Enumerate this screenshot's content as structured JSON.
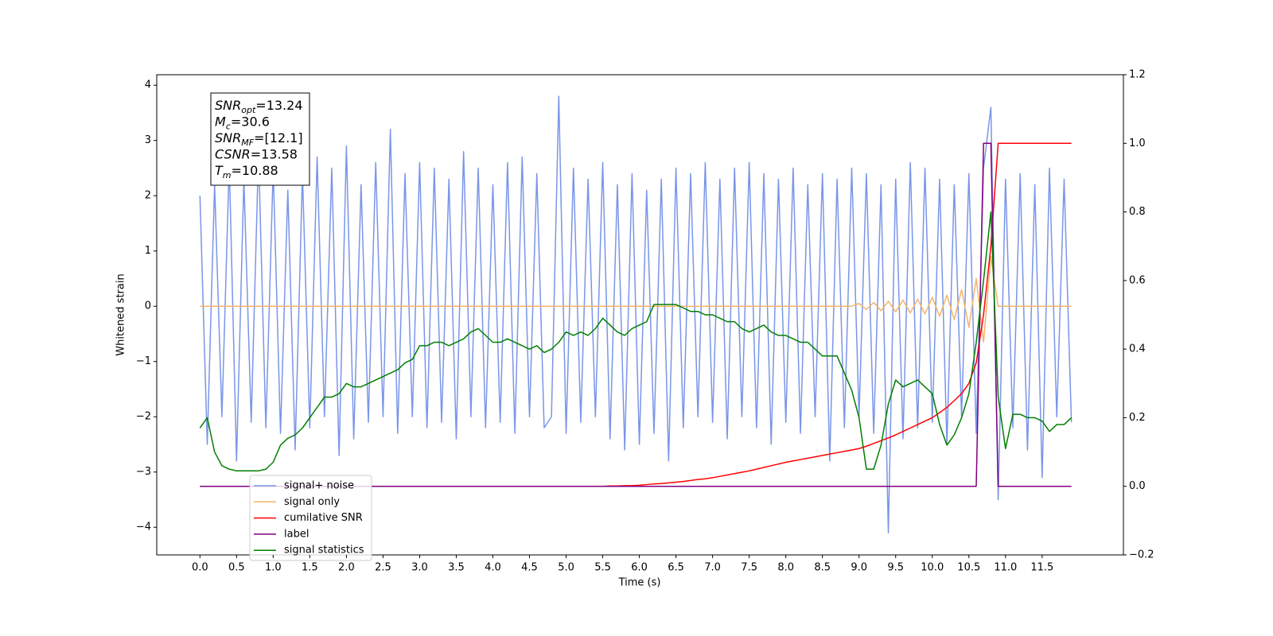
{
  "chart_data": {
    "type": "line",
    "x_label": "Time (s)",
    "y_label": "Whitened strain",
    "xlim": [
      -0.59,
      12.61
    ],
    "ylim": [
      -4.5,
      4.19
    ],
    "y2lim": [
      -0.2,
      1.2
    ],
    "xticks": [
      {
        "value": 0,
        "label": "0.0"
      },
      0.5,
      {
        "value": 1,
        "label": "1.0"
      },
      1.5,
      {
        "value": 2,
        "label": "2.0"
      },
      2.5,
      {
        "value": 3,
        "label": "3.0"
      },
      3.5,
      {
        "value": 4,
        "label": "4.0"
      },
      4.5,
      {
        "value": 5,
        "label": "5.0"
      },
      5.5,
      {
        "value": 6,
        "label": "6.0"
      },
      6.5,
      {
        "value": 7,
        "label": "7.0"
      },
      7.5,
      {
        "value": 8,
        "label": "8.0"
      },
      8.5,
      {
        "value": 9,
        "label": "9.0"
      },
      9.5,
      {
        "value": 10,
        "label": "10.0"
      },
      10.5,
      {
        "value": 11,
        "label": "11.0"
      },
      11.5
    ],
    "yticks": [
      {
        "value": -4,
        "label": "−4"
      },
      {
        "value": -3,
        "label": "−3"
      },
      {
        "value": -2,
        "label": "−2"
      },
      {
        "value": -1,
        "label": "−1"
      },
      0,
      1,
      2,
      3,
      4
    ],
    "y2ticks": [
      {
        "value": -0.2,
        "label": "−0.2"
      },
      {
        "value": 0,
        "label": "0.0"
      },
      0.2,
      0.4,
      0.6,
      0.8,
      {
        "value": 1,
        "label": "1.0"
      },
      1.2
    ],
    "grid": false,
    "legend_loc": "lower left",
    "annotation": [
      {
        "symbol": "SNR",
        "sub": "opt",
        "text": "=13.24"
      },
      {
        "symbol": "M",
        "sub": "c",
        "text": "=30.6"
      },
      {
        "symbol": "SNR",
        "sub": "MF",
        "text": "=[12.1]"
      },
      {
        "symbol": "CSNR",
        "sub": "",
        "text": "=13.58"
      },
      {
        "symbol": "T",
        "sub": "m",
        "text": "=10.88"
      }
    ],
    "x": [
      0.0,
      0.1,
      0.2,
      0.3,
      0.4,
      0.5,
      0.6,
      0.7,
      0.8,
      0.9,
      1.0,
      1.1,
      1.2,
      1.3,
      1.4,
      1.5,
      1.6,
      1.7,
      1.8,
      1.9,
      2.0,
      2.1,
      2.2,
      2.3,
      2.4,
      2.5,
      2.6,
      2.7,
      2.8,
      2.9,
      3.0,
      3.1,
      3.2,
      3.3,
      3.4,
      3.5,
      3.6,
      3.7,
      3.8,
      3.9,
      4.0,
      4.1,
      4.2,
      4.3,
      4.4,
      4.5,
      4.6,
      4.7,
      4.8,
      4.9,
      5.0,
      5.1,
      5.2,
      5.3,
      5.4,
      5.5,
      5.6,
      5.7,
      5.8,
      5.9,
      6.0,
      6.1,
      6.2,
      6.3,
      6.4,
      6.5,
      6.6,
      6.7,
      6.8,
      6.9,
      7.0,
      7.1,
      7.2,
      7.3,
      7.4,
      7.5,
      7.6,
      7.7,
      7.8,
      7.9,
      8.0,
      8.1,
      8.2,
      8.3,
      8.4,
      8.5,
      8.6,
      8.7,
      8.8,
      8.9,
      9.0,
      9.1,
      9.2,
      9.3,
      9.4,
      9.5,
      9.6,
      9.7,
      9.8,
      9.9,
      10.0,
      10.1,
      10.2,
      10.3,
      10.4,
      10.5,
      10.6,
      10.7,
      10.8,
      10.9,
      11.0,
      11.1,
      11.2,
      11.3,
      11.4,
      11.5,
      11.6,
      11.7,
      11.8,
      11.9
    ],
    "series": [
      {
        "name": "signal+ noise",
        "color": "#7a95e8",
        "axis": "y",
        "values": [
          2.0,
          -2.5,
          2.2,
          -2.0,
          2.6,
          -2.8,
          2.3,
          -2.1,
          2.8,
          -2.2,
          2.5,
          -2.3,
          2.1,
          -2.6,
          2.4,
          -2.2,
          2.7,
          -2.0,
          2.5,
          -2.7,
          2.9,
          -2.4,
          2.2,
          -2.1,
          2.6,
          -2.0,
          3.2,
          -2.3,
          2.4,
          -2.0,
          2.6,
          -2.2,
          2.5,
          -2.1,
          2.3,
          -2.4,
          2.8,
          -2.0,
          2.5,
          -2.2,
          2.2,
          -2.1,
          2.6,
          -2.3,
          2.7,
          -2.0,
          2.4,
          -2.2,
          -2.0,
          3.8,
          -2.3,
          2.5,
          -2.1,
          2.3,
          -2.0,
          2.6,
          -2.4,
          2.2,
          -2.6,
          2.4,
          -2.5,
          2.1,
          -2.3,
          2.3,
          -2.8,
          2.5,
          -2.2,
          2.4,
          -2.0,
          2.6,
          -2.1,
          2.3,
          -2.4,
          2.5,
          -2.0,
          2.6,
          -2.2,
          2.4,
          -2.5,
          2.3,
          -2.1,
          2.5,
          -2.3,
          2.2,
          -2.0,
          2.4,
          -2.8,
          2.3,
          -2.2,
          2.5,
          -2.0,
          2.4,
          -2.3,
          2.2,
          -4.1,
          2.3,
          -2.4,
          2.6,
          -2.2,
          2.5,
          -2.1,
          2.3,
          -2.5,
          2.2,
          -2.0,
          2.4,
          -2.3,
          2.5,
          3.6,
          -3.5,
          2.3,
          -2.2,
          2.4,
          -2.6,
          2.2,
          -3.1,
          2.5,
          -2.0,
          2.3,
          -2.1
        ]
      },
      {
        "name": "signal only",
        "color": "#f5b469",
        "axis": "y",
        "values": [
          0,
          0,
          0,
          0,
          0,
          0,
          0,
          0,
          0,
          0,
          0,
          0,
          0,
          0,
          0,
          0,
          0,
          0,
          0,
          0,
          0,
          0,
          0,
          0,
          0,
          0,
          0,
          0,
          0,
          0,
          0,
          0,
          0,
          0,
          0,
          0,
          0,
          0,
          0,
          0,
          0,
          0,
          0,
          0,
          0,
          0,
          0,
          0,
          0,
          0,
          0,
          0,
          0,
          0,
          0,
          0,
          0,
          0,
          0,
          0,
          0,
          0,
          0,
          0,
          0,
          0,
          0,
          0,
          0,
          0,
          0,
          0,
          0,
          0,
          0,
          0,
          0,
          0,
          0,
          0,
          0,
          0,
          0,
          0,
          0,
          0,
          0,
          0,
          0,
          0,
          0.05,
          -0.06,
          0.07,
          -0.08,
          0.09,
          -0.1,
          0.11,
          -0.12,
          0.13,
          -0.14,
          0.16,
          -0.18,
          0.2,
          -0.24,
          0.3,
          -0.38,
          0.5,
          -0.65,
          0.9,
          0,
          0,
          0,
          0,
          0,
          0,
          0,
          0,
          0,
          0,
          0
        ]
      },
      {
        "name": "cumilative SNR",
        "color": "#ff0000",
        "axis": "y2",
        "values": [
          0,
          0,
          0,
          0,
          0,
          0,
          0,
          0,
          0,
          0,
          0,
          0,
          0,
          0,
          0,
          0,
          0,
          0,
          0,
          0,
          0,
          0,
          0,
          0,
          0,
          0,
          0,
          0,
          0,
          0,
          0,
          0,
          0,
          0,
          0,
          0,
          0,
          0,
          0,
          0,
          0,
          0,
          0,
          0,
          0,
          0,
          0,
          0,
          0,
          0,
          0,
          0,
          0,
          0,
          0,
          0,
          0.001,
          0.001,
          0.002,
          0.002,
          0.003,
          0.005,
          0.007,
          0.008,
          0.01,
          0.012,
          0.014,
          0.017,
          0.02,
          0.022,
          0.025,
          0.029,
          0.033,
          0.037,
          0.041,
          0.045,
          0.05,
          0.055,
          0.06,
          0.065,
          0.07,
          0.074,
          0.078,
          0.082,
          0.086,
          0.09,
          0.094,
          0.098,
          0.102,
          0.106,
          0.11,
          0.117,
          0.125,
          0.133,
          0.141,
          0.15,
          0.16,
          0.17,
          0.18,
          0.19,
          0.2,
          0.215,
          0.23,
          0.25,
          0.27,
          0.3,
          0.36,
          0.5,
          0.7,
          1.0,
          1.0,
          1.0,
          1.0,
          1.0,
          1.0,
          1.0,
          1.0,
          1.0,
          1.0,
          1.0
        ]
      },
      {
        "name": "label",
        "color": "#800080",
        "axis": "y2",
        "values": [
          0,
          0,
          0,
          0,
          0,
          0,
          0,
          0,
          0,
          0,
          0,
          0,
          0,
          0,
          0,
          0,
          0,
          0,
          0,
          0,
          0,
          0,
          0,
          0,
          0,
          0,
          0,
          0,
          0,
          0,
          0,
          0,
          0,
          0,
          0,
          0,
          0,
          0,
          0,
          0,
          0,
          0,
          0,
          0,
          0,
          0,
          0,
          0,
          0,
          0,
          0,
          0,
          0,
          0,
          0,
          0,
          0,
          0,
          0,
          0,
          0,
          0,
          0,
          0,
          0,
          0,
          0,
          0,
          0,
          0,
          0,
          0,
          0,
          0,
          0,
          0,
          0,
          0,
          0,
          0,
          0,
          0,
          0,
          0,
          0,
          0,
          0,
          0,
          0,
          0,
          0,
          0,
          0,
          0,
          0,
          0,
          0,
          0,
          0,
          0,
          0,
          0,
          0,
          0,
          0,
          0,
          0,
          1,
          1,
          0,
          0,
          0,
          0,
          0,
          0,
          0,
          0,
          0,
          0,
          0
        ]
      },
      {
        "name": "signal statistics",
        "color": "#008000",
        "axis": "y2",
        "values": [
          0.17,
          0.2,
          0.1,
          0.06,
          0.05,
          0.045,
          0.045,
          0.045,
          0.045,
          0.05,
          0.07,
          0.12,
          0.14,
          0.15,
          0.17,
          0.2,
          0.23,
          0.26,
          0.26,
          0.27,
          0.3,
          0.29,
          0.29,
          0.3,
          0.31,
          0.32,
          0.33,
          0.34,
          0.36,
          0.37,
          0.41,
          0.41,
          0.42,
          0.42,
          0.41,
          0.42,
          0.43,
          0.45,
          0.46,
          0.44,
          0.42,
          0.42,
          0.43,
          0.42,
          0.41,
          0.4,
          0.41,
          0.39,
          0.4,
          0.42,
          0.45,
          0.44,
          0.45,
          0.44,
          0.46,
          0.49,
          0.47,
          0.45,
          0.44,
          0.46,
          0.47,
          0.48,
          0.53,
          0.53,
          0.53,
          0.53,
          0.52,
          0.51,
          0.51,
          0.5,
          0.5,
          0.49,
          0.48,
          0.48,
          0.46,
          0.45,
          0.46,
          0.47,
          0.45,
          0.44,
          0.44,
          0.43,
          0.42,
          0.42,
          0.4,
          0.38,
          0.38,
          0.38,
          0.33,
          0.28,
          0.2,
          0.05,
          0.05,
          0.12,
          0.24,
          0.31,
          0.29,
          0.3,
          0.31,
          0.29,
          0.27,
          0.18,
          0.12,
          0.15,
          0.2,
          0.27,
          0.42,
          0.6,
          0.8,
          0.26,
          0.11,
          0.21,
          0.21,
          0.2,
          0.2,
          0.19,
          0.16,
          0.18,
          0.18,
          0.2
        ]
      }
    ]
  }
}
